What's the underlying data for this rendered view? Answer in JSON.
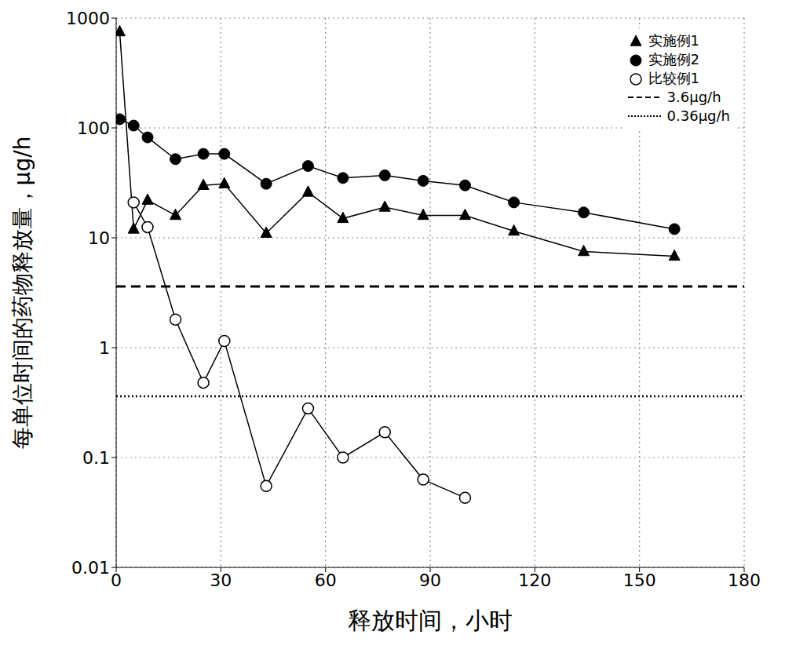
{
  "chart_data": {
    "type": "line",
    "log": "y",
    "grid": true,
    "legend": "upper right",
    "xlabel": "释放时间，小时",
    "ylabel": "每单位时间的药物释放量，μg/h",
    "xlim": [
      0,
      180
    ],
    "xticks": [
      0,
      30,
      60,
      90,
      120,
      150,
      180
    ],
    "ylim": [
      0.01,
      1000
    ],
    "yticks": [
      0.01,
      0.1,
      1,
      10,
      100,
      1000
    ],
    "series": [
      {
        "name": "实施例1",
        "color": "#000000",
        "marker": "triangle",
        "x": [
          1,
          5,
          9,
          17,
          25,
          31,
          43,
          55,
          65,
          77,
          88,
          100,
          114,
          134,
          160
        ],
        "values": [
          750,
          12,
          22,
          16,
          30,
          31,
          11,
          26,
          15,
          19,
          16,
          16,
          11.5,
          7.5,
          6.8
        ]
      },
      {
        "name": "实施例2",
        "color": "#000000",
        "marker": "circle",
        "x": [
          1,
          5,
          9,
          17,
          25,
          31,
          43,
          55,
          65,
          77,
          88,
          100,
          114,
          134,
          160
        ],
        "values": [
          120,
          105,
          82,
          52,
          58,
          58,
          31,
          45,
          35,
          37,
          33,
          30,
          21,
          17,
          12
        ]
      },
      {
        "name": "比较例1",
        "color": "#000000",
        "marker": "open_circle",
        "x": [
          5,
          9,
          17,
          25,
          31,
          43,
          55,
          65,
          77,
          88,
          100
        ],
        "values": [
          21,
          12.5,
          1.8,
          0.48,
          1.15,
          0.055,
          0.28,
          0.1,
          0.17,
          0.063,
          0.043
        ]
      }
    ],
    "reference_lines": [
      {
        "name": "3.6μg/h",
        "value": 3.6,
        "color": "#000000",
        "line_style": "dashed"
      },
      {
        "name": "0.36μg/h",
        "value": 0.36,
        "color": "#000000",
        "line_style": "dotted"
      }
    ]
  }
}
